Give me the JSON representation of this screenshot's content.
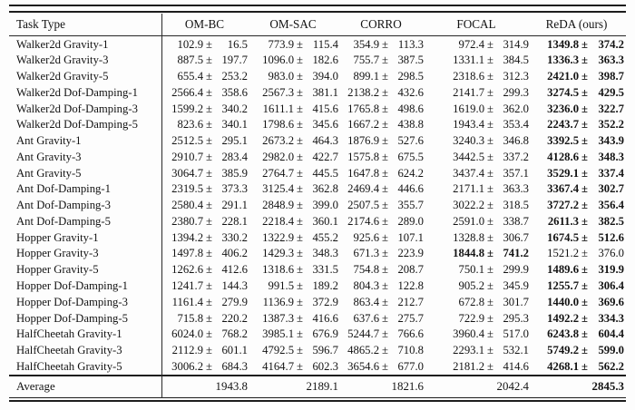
{
  "table": {
    "pm_sign": "±",
    "columns": [
      "Task Type",
      "OM-BC",
      "OM-SAC",
      "CORRO",
      "FOCAL",
      "ReDA (ours)"
    ],
    "rows": [
      {
        "label": "Walker2d Gravity-1",
        "cells": [
          {
            "m": "102.9",
            "s": "16.5"
          },
          {
            "m": "773.9",
            "s": "115.4"
          },
          {
            "m": "354.9",
            "s": "113.3"
          },
          {
            "m": "972.4",
            "s": "314.9"
          },
          {
            "m": "1349.8",
            "s": "374.2",
            "b": true
          }
        ]
      },
      {
        "label": "Walker2d Gravity-3",
        "cells": [
          {
            "m": "887.5",
            "s": "197.7"
          },
          {
            "m": "1096.0",
            "s": "182.6"
          },
          {
            "m": "755.7",
            "s": "387.5"
          },
          {
            "m": "1331.1",
            "s": "384.5"
          },
          {
            "m": "1336.3",
            "s": "363.3",
            "b": true
          }
        ]
      },
      {
        "label": "Walker2d Gravity-5",
        "cells": [
          {
            "m": "655.4",
            "s": "253.2"
          },
          {
            "m": "983.0",
            "s": "394.0"
          },
          {
            "m": "899.1",
            "s": "298.5"
          },
          {
            "m": "2318.6",
            "s": "312.3"
          },
          {
            "m": "2421.0",
            "s": "398.7",
            "b": true
          }
        ]
      },
      {
        "label": "Walker2d Dof-Damping-1",
        "cells": [
          {
            "m": "2566.4",
            "s": "358.6"
          },
          {
            "m": "2567.3",
            "s": "381.1"
          },
          {
            "m": "2138.2",
            "s": "432.6"
          },
          {
            "m": "2141.7",
            "s": "299.3"
          },
          {
            "m": "3274.5",
            "s": "429.5",
            "b": true
          }
        ]
      },
      {
        "label": "Walker2d Dof-Damping-3",
        "cells": [
          {
            "m": "1599.2",
            "s": "340.2"
          },
          {
            "m": "1611.1",
            "s": "415.6"
          },
          {
            "m": "1765.8",
            "s": "498.6"
          },
          {
            "m": "1619.0",
            "s": "362.0"
          },
          {
            "m": "3236.0",
            "s": "322.7",
            "b": true
          }
        ]
      },
      {
        "label": "Walker2d Dof-Damping-5",
        "cells": [
          {
            "m": "823.6",
            "s": "340.1"
          },
          {
            "m": "1798.6",
            "s": "345.6"
          },
          {
            "m": "1667.2",
            "s": "438.8"
          },
          {
            "m": "1943.4",
            "s": "353.4"
          },
          {
            "m": "2243.7",
            "s": "352.2",
            "b": true
          }
        ]
      },
      {
        "label": "Ant Gravity-1",
        "cells": [
          {
            "m": "2512.5",
            "s": "295.1"
          },
          {
            "m": "2673.2",
            "s": "464.3"
          },
          {
            "m": "1876.9",
            "s": "527.6"
          },
          {
            "m": "3240.3",
            "s": "346.8"
          },
          {
            "m": "3392.5",
            "s": "343.9",
            "b": true
          }
        ]
      },
      {
        "label": "Ant Gravity-3",
        "cells": [
          {
            "m": "2910.7",
            "s": "283.4"
          },
          {
            "m": "2982.0",
            "s": "422.7"
          },
          {
            "m": "1575.8",
            "s": "675.5"
          },
          {
            "m": "3442.5",
            "s": "337.2"
          },
          {
            "m": "4128.6",
            "s": "348.3",
            "b": true
          }
        ]
      },
      {
        "label": "Ant Gravity-5",
        "cells": [
          {
            "m": "3064.7",
            "s": "385.9"
          },
          {
            "m": "2764.7",
            "s": "445.5"
          },
          {
            "m": "1647.8",
            "s": "624.2"
          },
          {
            "m": "3437.4",
            "s": "357.1"
          },
          {
            "m": "3529.1",
            "s": "337.4",
            "b": true
          }
        ]
      },
      {
        "label": "Ant Dof-Damping-1",
        "cells": [
          {
            "m": "2319.5",
            "s": "373.3"
          },
          {
            "m": "3125.4",
            "s": "362.8"
          },
          {
            "m": "2469.4",
            "s": "446.6"
          },
          {
            "m": "2171.1",
            "s": "363.3"
          },
          {
            "m": "3367.4",
            "s": "302.7",
            "b": true
          }
        ]
      },
      {
        "label": "Ant Dof-Damping-3",
        "cells": [
          {
            "m": "2580.4",
            "s": "291.1"
          },
          {
            "m": "2848.9",
            "s": "399.0"
          },
          {
            "m": "2507.5",
            "s": "355.7"
          },
          {
            "m": "3022.2",
            "s": "318.5"
          },
          {
            "m": "3727.2",
            "s": "356.4",
            "b": true
          }
        ]
      },
      {
        "label": "Ant Dof-Damping-5",
        "cells": [
          {
            "m": "2380.7",
            "s": "228.1"
          },
          {
            "m": "2218.4",
            "s": "360.1"
          },
          {
            "m": "2174.6",
            "s": "289.0"
          },
          {
            "m": "2591.0",
            "s": "338.7"
          },
          {
            "m": "2611.3",
            "s": "382.5",
            "b": true
          }
        ]
      },
      {
        "label": "Hopper Gravity-1",
        "cells": [
          {
            "m": "1394.2",
            "s": "330.2"
          },
          {
            "m": "1322.9",
            "s": "455.2"
          },
          {
            "m": "925.6",
            "s": "107.1"
          },
          {
            "m": "1328.8",
            "s": "306.7"
          },
          {
            "m": "1674.5",
            "s": "512.6",
            "b": true
          }
        ]
      },
      {
        "label": "Hopper Gravity-3",
        "cells": [
          {
            "m": "1497.8",
            "s": "406.2"
          },
          {
            "m": "1429.3",
            "s": "348.3"
          },
          {
            "m": "671.3",
            "s": "223.9"
          },
          {
            "m": "1844.8",
            "s": "741.2",
            "b": true
          },
          {
            "m": "1521.2",
            "s": "376.0"
          }
        ]
      },
      {
        "label": "Hopper Gravity-5",
        "cells": [
          {
            "m": "1262.6",
            "s": "412.6"
          },
          {
            "m": "1318.6",
            "s": "331.5"
          },
          {
            "m": "754.8",
            "s": "208.7"
          },
          {
            "m": "750.1",
            "s": "299.9"
          },
          {
            "m": "1489.6",
            "s": "319.9",
            "b": true
          }
        ]
      },
      {
        "label": "Hopper Dof-Damping-1",
        "cells": [
          {
            "m": "1241.7",
            "s": "144.3"
          },
          {
            "m": "991.5",
            "s": "189.2"
          },
          {
            "m": "804.3",
            "s": "122.8"
          },
          {
            "m": "905.2",
            "s": "345.9"
          },
          {
            "m": "1255.7",
            "s": "306.4",
            "b": true
          }
        ]
      },
      {
        "label": "Hopper Dof-Damping-3",
        "cells": [
          {
            "m": "1161.4",
            "s": "279.9"
          },
          {
            "m": "1136.9",
            "s": "372.9"
          },
          {
            "m": "863.4",
            "s": "212.7"
          },
          {
            "m": "672.8",
            "s": "301.7"
          },
          {
            "m": "1440.0",
            "s": "369.6",
            "b": true
          }
        ]
      },
      {
        "label": "Hopper Dof-Damping-5",
        "cells": [
          {
            "m": "715.8",
            "s": "220.2"
          },
          {
            "m": "1387.3",
            "s": "416.6"
          },
          {
            "m": "637.6",
            "s": "275.7"
          },
          {
            "m": "722.9",
            "s": "295.3"
          },
          {
            "m": "1492.2",
            "s": "334.3",
            "b": true
          }
        ]
      },
      {
        "label": "HalfCheetah Gravity-1",
        "cells": [
          {
            "m": "6024.0",
            "s": "768.2"
          },
          {
            "m": "3985.1",
            "s": "676.9"
          },
          {
            "m": "5244.7",
            "s": "766.6"
          },
          {
            "m": "3960.4",
            "s": "517.0"
          },
          {
            "m": "6243.8",
            "s": "604.4",
            "b": true
          }
        ]
      },
      {
        "label": "HalfCheetah Gravity-3",
        "cells": [
          {
            "m": "2112.9",
            "s": "601.1"
          },
          {
            "m": "4792.5",
            "s": "596.7"
          },
          {
            "m": "4865.2",
            "s": "710.8"
          },
          {
            "m": "2293.1",
            "s": "532.1"
          },
          {
            "m": "5749.2",
            "s": "599.0",
            "b": true
          }
        ]
      },
      {
        "label": "HalfCheetah Gravity-5",
        "cells": [
          {
            "m": "3006.2",
            "s": "684.3"
          },
          {
            "m": "4164.7",
            "s": "602.3"
          },
          {
            "m": "3654.6",
            "s": "677.0"
          },
          {
            "m": "2181.2",
            "s": "414.6"
          },
          {
            "m": "4268.1",
            "s": "562.2",
            "b": true
          }
        ]
      }
    ],
    "average": {
      "label": "Average",
      "values": [
        {
          "v": "1943.8"
        },
        {
          "v": "2189.1"
        },
        {
          "v": "1821.6"
        },
        {
          "v": "2042.4"
        },
        {
          "v": "2845.3",
          "b": true
        }
      ]
    }
  }
}
